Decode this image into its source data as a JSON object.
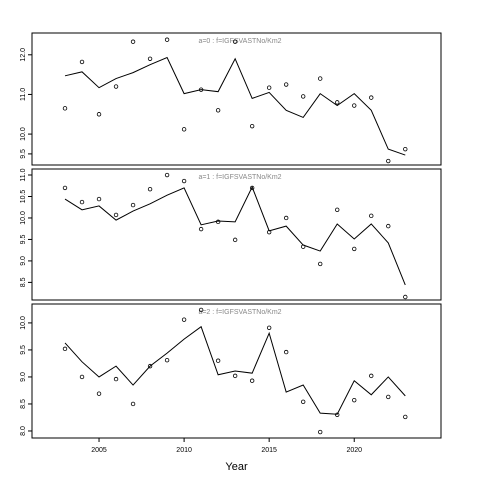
{
  "chart_data": [
    {
      "type": "line",
      "annotation": "a=0 : f=IGFSVASTNo/Km2",
      "x": [
        2003,
        2004,
        2005,
        2006,
        2007,
        2008,
        2009,
        2010,
        2011,
        2012,
        2013,
        2014,
        2015,
        2016,
        2017,
        2018,
        2019,
        2020,
        2021,
        2022,
        2023
      ],
      "series": [
        {
          "style": "points",
          "color": "#000000",
          "values": [
            10.65,
            11.82,
            10.5,
            11.2,
            12.33,
            11.9,
            12.38,
            10.12,
            11.12,
            10.6,
            12.33,
            10.2,
            11.17,
            11.25,
            10.95,
            11.4,
            10.8,
            10.72,
            10.92,
            9.32,
            9.62
          ]
        },
        {
          "style": "line",
          "color": "#000000",
          "values": [
            11.47,
            11.57,
            11.17,
            11.4,
            11.55,
            11.75,
            11.93,
            11.02,
            11.12,
            11.07,
            11.9,
            10.9,
            11.05,
            10.6,
            10.42,
            11.02,
            10.72,
            11.02,
            10.6,
            9.62,
            9.47
          ]
        }
      ],
      "xlim": [
        2001.06,
        2025.1
      ],
      "ylim": [
        9.22,
        12.55
      ],
      "yticks": [
        {
          "value": 9.5,
          "label": "9.5"
        },
        {
          "value": 10,
          "label": "10.0"
        },
        {
          "value": 11,
          "label": "11.0"
        },
        {
          "value": 12,
          "label": "12.0"
        }
      ]
    },
    {
      "type": "line",
      "annotation": "a=1 : f=IGFSVASTNo/Km2",
      "x": [
        2003,
        2004,
        2005,
        2006,
        2007,
        2008,
        2009,
        2010,
        2011,
        2012,
        2013,
        2014,
        2015,
        2016,
        2017,
        2018,
        2019,
        2020,
        2021,
        2022,
        2023
      ],
      "series": [
        {
          "style": "points",
          "color": "#000000",
          "values": [
            10.7,
            10.37,
            10.44,
            10.07,
            10.3,
            10.67,
            11.0,
            10.86,
            9.74,
            9.91,
            9.49,
            10.7,
            9.67,
            10.0,
            9.33,
            8.93,
            10.19,
            9.28,
            10.05,
            9.81,
            8.16
          ]
        },
        {
          "style": "line",
          "color": "#000000",
          "values": [
            10.44,
            10.19,
            10.28,
            9.95,
            10.16,
            10.33,
            10.53,
            10.7,
            9.84,
            9.93,
            9.91,
            10.72,
            9.7,
            9.81,
            9.37,
            9.23,
            9.86,
            9.51,
            9.86,
            9.42,
            8.44
          ]
        }
      ],
      "xlim": [
        2001.06,
        2025.1
      ],
      "ylim": [
        8.09,
        11.14
      ],
      "yticks": [
        {
          "value": 8.5,
          "label": "8.5"
        },
        {
          "value": 9,
          "label": "9.0"
        },
        {
          "value": 9.5,
          "label": "9.5"
        },
        {
          "value": 10,
          "label": "10.0"
        },
        {
          "value": 10.5,
          "label": "10.5"
        },
        {
          "value": 11,
          "label": "11.0"
        }
      ]
    },
    {
      "type": "line",
      "annotation": "a=2 : f=IGFSVASTNo/Km2",
      "xlabel": "Year",
      "x": [
        2003,
        2004,
        2005,
        2006,
        2007,
        2008,
        2009,
        2010,
        2011,
        2012,
        2013,
        2014,
        2015,
        2016,
        2017,
        2018,
        2019,
        2020,
        2021,
        2022,
        2023
      ],
      "series": [
        {
          "style": "points",
          "color": "#000000",
          "values": [
            9.52,
            9.0,
            8.69,
            8.96,
            8.5,
            9.2,
            9.31,
            10.06,
            10.24,
            9.3,
            9.02,
            8.93,
            9.91,
            9.46,
            8.54,
            7.98,
            8.3,
            8.57,
            9.02,
            8.63,
            8.26
          ]
        },
        {
          "style": "line",
          "color": "#000000",
          "values": [
            9.63,
            9.28,
            9.0,
            9.2,
            8.85,
            9.2,
            9.44,
            9.7,
            9.93,
            9.04,
            9.11,
            9.07,
            9.81,
            8.72,
            8.85,
            8.33,
            8.31,
            8.93,
            8.67,
            9.0,
            8.65
          ]
        }
      ],
      "xlim": [
        2001.06,
        2025.1
      ],
      "ylim": [
        7.87,
        10.35
      ],
      "xticks": [
        2005,
        2010,
        2015,
        2020
      ],
      "yticks": [
        {
          "value": 8,
          "label": "8.0"
        },
        {
          "value": 8.5,
          "label": "8.5"
        },
        {
          "value": 9,
          "label": "9.0"
        },
        {
          "value": 9.5,
          "label": "9.5"
        },
        {
          "value": 10,
          "label": "10.0"
        }
      ]
    }
  ]
}
